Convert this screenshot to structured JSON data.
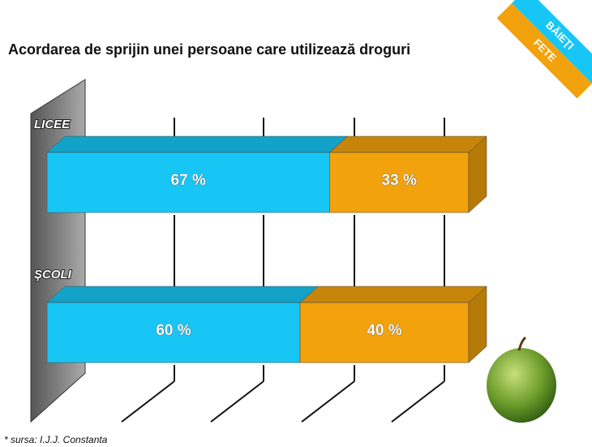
{
  "chart_data": {
    "type": "stacked-bar-3d",
    "title": "Acordarea de sprijin unei persoane care utilizează droguri",
    "categories": [
      "LICEE",
      "ŞCOLI"
    ],
    "series": [
      {
        "name": "BĂIEŢI",
        "color": "#17c6f4",
        "values": [
          67,
          60
        ],
        "value_labels": [
          "67 %",
          "60 %"
        ]
      },
      {
        "name": "FETE",
        "color": "#f2a20c",
        "values": [
          33,
          40
        ],
        "value_labels": [
          "33 %",
          "40 %"
        ]
      }
    ],
    "xlim": [
      0,
      100
    ],
    "note": "* sursa: I.J.J. Constanta"
  }
}
